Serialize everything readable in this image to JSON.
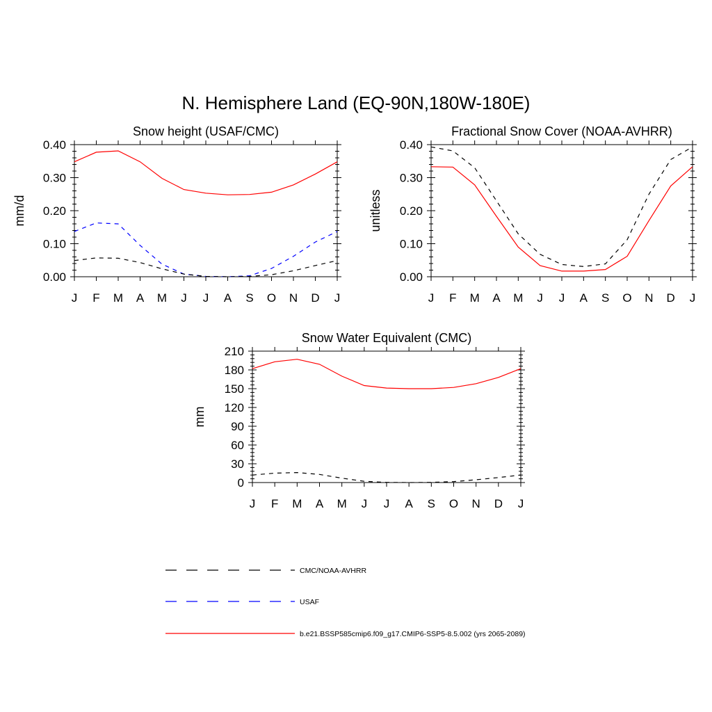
{
  "figure_title": "N. Hemisphere Land (EQ-90N,180W-180E)",
  "months": [
    "J",
    "F",
    "M",
    "A",
    "M",
    "J",
    "J",
    "A",
    "S",
    "O",
    "N",
    "D",
    "J"
  ],
  "colors": {
    "model": "#ff0000",
    "obs": "#000000",
    "usaf": "#0000ff"
  },
  "legend": [
    {
      "label": "CMC/NOAA-AVHRR",
      "color": "#000000",
      "style": "dashed"
    },
    {
      "label": "USAF",
      "color": "#0000ff",
      "style": "dashed"
    },
    {
      "label": "b.e21.BSSP585cmip6.f09_g17.CMIP6-SSP5-8.5.002 (yrs 2065-2089)",
      "color": "#ff0000",
      "style": "solid"
    }
  ],
  "chart_data": [
    {
      "type": "line",
      "title": "Snow height (USAF/CMC)",
      "xlabel": "",
      "ylabel": "mm/d",
      "x": [
        0,
        1,
        2,
        3,
        4,
        5,
        6,
        7,
        8,
        9,
        10,
        11,
        12
      ],
      "ylim": [
        0,
        0.4
      ],
      "yticks": [
        0,
        0.1,
        0.2,
        0.3,
        0.4
      ],
      "ytick_labels": [
        "0.00",
        "0.10",
        "0.20",
        "0.30",
        "0.40"
      ],
      "series": [
        {
          "values": [
            0.348,
            0.377,
            0.381,
            0.348,
            0.298,
            0.264,
            0.253,
            0.248,
            0.249,
            0.256,
            0.278,
            0.311,
            0.348
          ],
          "color": "#ff0000",
          "dash": ""
        },
        {
          "values": [
            0.137,
            0.163,
            0.16,
            0.095,
            0.038,
            0.008,
            0.001,
            0.0,
            0.003,
            0.025,
            0.062,
            0.105,
            0.137
          ],
          "color": "#0000ff",
          "dash": "6,6"
        },
        {
          "values": [
            0.049,
            0.057,
            0.056,
            0.043,
            0.024,
            0.008,
            0.001,
            0.0,
            0.001,
            0.006,
            0.018,
            0.034,
            0.049
          ],
          "color": "#000000",
          "dash": "6,6"
        }
      ]
    },
    {
      "type": "line",
      "title": "Fractional Snow Cover (NOAA-AVHRR)",
      "xlabel": "",
      "ylabel": "unitless",
      "x": [
        0,
        1,
        2,
        3,
        4,
        5,
        6,
        7,
        8,
        9,
        10,
        11,
        12
      ],
      "ylim": [
        0,
        0.4
      ],
      "yticks": [
        0,
        0.1,
        0.2,
        0.3,
        0.4
      ],
      "ytick_labels": [
        "0.00",
        "0.10",
        "0.20",
        "0.30",
        "0.40"
      ],
      "series": [
        {
          "values": [
            0.333,
            0.332,
            0.278,
            0.183,
            0.09,
            0.034,
            0.017,
            0.017,
            0.022,
            0.062,
            0.17,
            0.275,
            0.333
          ],
          "color": "#ff0000",
          "dash": ""
        },
        {
          "values": [
            0.393,
            0.381,
            0.33,
            0.23,
            0.13,
            0.068,
            0.037,
            0.031,
            0.039,
            0.112,
            0.25,
            0.355,
            0.393
          ],
          "color": "#000000",
          "dash": "6,6"
        }
      ]
    },
    {
      "type": "line",
      "title": "Snow Water Equivalent (CMC)",
      "xlabel": "",
      "ylabel": "mm",
      "x": [
        0,
        1,
        2,
        3,
        4,
        5,
        6,
        7,
        8,
        9,
        10,
        11,
        12
      ],
      "ylim": [
        0,
        210
      ],
      "yticks": [
        0,
        30,
        60,
        90,
        120,
        150,
        180,
        210
      ],
      "ytick_labels": [
        "0",
        "30",
        "60",
        "90",
        "120",
        "150",
        "180",
        "210"
      ],
      "series": [
        {
          "values": [
            182,
            193,
            197,
            189,
            170,
            155,
            151,
            150,
            150,
            152,
            158,
            168,
            182
          ],
          "color": "#ff0000",
          "dash": ""
        },
        {
          "values": [
            12,
            15,
            16,
            13,
            7,
            2,
            0.3,
            0,
            0.3,
            1.5,
            4.5,
            8,
            12
          ],
          "color": "#000000",
          "dash": "6,6"
        }
      ]
    }
  ]
}
